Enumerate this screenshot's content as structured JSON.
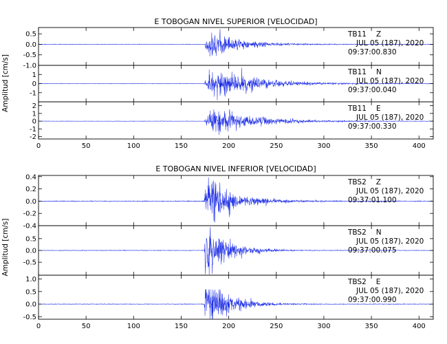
{
  "chart_data": [
    {
      "type": "line",
      "title": "E TOBOGAN NIVEL SUPERIOR [VELOCIDAD]",
      "ylabel": "Amplitud [cm/s]",
      "xlim": [
        0,
        415
      ],
      "xticks": [
        0,
        50,
        100,
        150,
        200,
        250,
        300,
        350,
        400
      ],
      "event_onset_s": 174,
      "panels": [
        {
          "component": "Z",
          "station": "TB11",
          "date": "JUL 05 (187), 2020",
          "time": "09:37:00.830",
          "ylim": [
            -1.0,
            0.8
          ],
          "yticks": [
            0.5,
            0.0,
            -0.5,
            -1.0
          ],
          "yticklabels": [
            "0.5",
            "0.0",
            "-0.5",
            "-1.0"
          ],
          "peak_amplitude": 0.55,
          "noise_amplitude": 0.01,
          "peak_delay_s": 6,
          "decay_s": 30
        },
        {
          "component": "N",
          "station": "TB11",
          "date": "JUL 05 (187), 2020",
          "time": "09:37:00.040",
          "ylim": [
            -2,
            2
          ],
          "yticks": [
            1,
            0,
            -1
          ],
          "yticklabels": [
            "1",
            "0",
            "-1"
          ],
          "peak_amplitude": 1.5,
          "noise_amplitude": 0.02,
          "peak_delay_s": 10,
          "decay_s": 40
        },
        {
          "component": "E",
          "station": "TB11",
          "date": "JUL 05 (187), 2020",
          "time": "09:37:00.330",
          "ylim": [
            -2.3,
            2.5
          ],
          "yticks": [
            2,
            1,
            0,
            -1,
            -2
          ],
          "yticklabels": [
            "2",
            "1",
            "0",
            "-1",
            "-2"
          ],
          "peak_amplitude": 1.5,
          "noise_amplitude": 0.02,
          "peak_delay_s": 10,
          "decay_s": 40
        }
      ]
    },
    {
      "type": "line",
      "title": "E TOBOGAN NIVEL INFERIOR [VELOCIDAD]",
      "ylabel": "Amplitud [cm/s]",
      "xlim": [
        0,
        415
      ],
      "xticks": [
        0,
        50,
        100,
        150,
        200,
        250,
        300,
        350,
        400
      ],
      "event_onset_s": 174,
      "panels": [
        {
          "component": "Z",
          "station": "TBS2",
          "date": "JUL 05 (187), 2020",
          "time": "09:37:01.100",
          "ylim": [
            -0.4,
            0.42
          ],
          "yticks": [
            0.4,
            0.2,
            0.0,
            -0.2,
            -0.4
          ],
          "yticklabels": [
            "0.4",
            "0.2",
            "0.0",
            "-0.2",
            "-0.4"
          ],
          "peak_amplitude": 0.35,
          "noise_amplitude": 0.005,
          "peak_delay_s": 3,
          "decay_s": 28
        },
        {
          "component": "N",
          "station": "TBS2",
          "date": "JUL 05 (187), 2020",
          "time": "09:37:00.075",
          "ylim": [
            -1.05,
            1.05
          ],
          "yticks": [
            0.5,
            0.0,
            -0.5
          ],
          "yticklabels": [
            "0.5",
            "0.0",
            "-0.5"
          ],
          "peak_amplitude": 0.9,
          "noise_amplitude": 0.01,
          "peak_delay_s": 2,
          "decay_s": 22
        },
        {
          "component": "E",
          "station": "TBS2",
          "date": "JUL 05 (187), 2020",
          "time": "09:37:00.990",
          "ylim": [
            -0.6,
            1.15
          ],
          "yticks": [
            1.0,
            0.5,
            0.0,
            -0.5
          ],
          "yticklabels": [
            "1.0",
            "0.5",
            "0.0",
            "-0.5"
          ],
          "peak_amplitude": 0.95,
          "noise_amplitude": 0.01,
          "peak_delay_s": 2,
          "decay_s": 22
        }
      ]
    }
  ]
}
